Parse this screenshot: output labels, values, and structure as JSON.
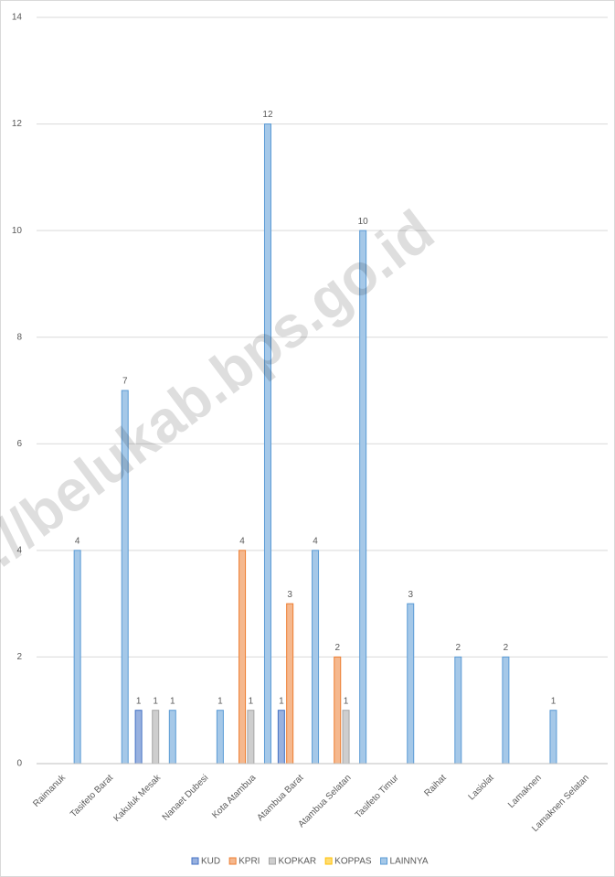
{
  "chart_data": {
    "type": "bar",
    "categories": [
      "Raimanuk",
      "Tasifeto Barat",
      "Kakuluk Mesak",
      "Nanaet Dubesi",
      "Kota Atambua",
      "Atambua Barat",
      "Atambua Selatan",
      "Tasifeto Timur",
      "Raihat",
      "Lasiolat",
      "Lamaknen",
      "Lamaknen Selatan"
    ],
    "series": [
      {
        "name": "KUD",
        "color": "#4472c4",
        "values": [
          null,
          null,
          1,
          null,
          null,
          1,
          null,
          null,
          null,
          null,
          null,
          null
        ]
      },
      {
        "name": "KPRI",
        "color": "#ed7d31",
        "values": [
          null,
          null,
          null,
          null,
          4,
          3,
          2,
          null,
          null,
          null,
          null,
          null
        ]
      },
      {
        "name": "KOPKAR",
        "color": "#a5a5a5",
        "values": [
          null,
          null,
          1,
          null,
          1,
          null,
          1,
          null,
          null,
          null,
          null,
          null
        ]
      },
      {
        "name": "KOPPAS",
        "color": "#ffc000",
        "values": [
          null,
          null,
          null,
          null,
          null,
          null,
          null,
          null,
          null,
          null,
          null,
          null
        ]
      },
      {
        "name": "LAINNYA",
        "color": "#5b9bd5",
        "values": [
          4,
          7,
          1,
          1,
          12,
          4,
          10,
          3,
          2,
          2,
          1,
          null
        ]
      }
    ],
    "ylim": [
      0,
      14
    ],
    "yticks": [
      0,
      2,
      4,
      6,
      8,
      10,
      12,
      14
    ],
    "grid": true,
    "legend": "bottom",
    "watermark": "s://belukab.bps.go.id"
  }
}
